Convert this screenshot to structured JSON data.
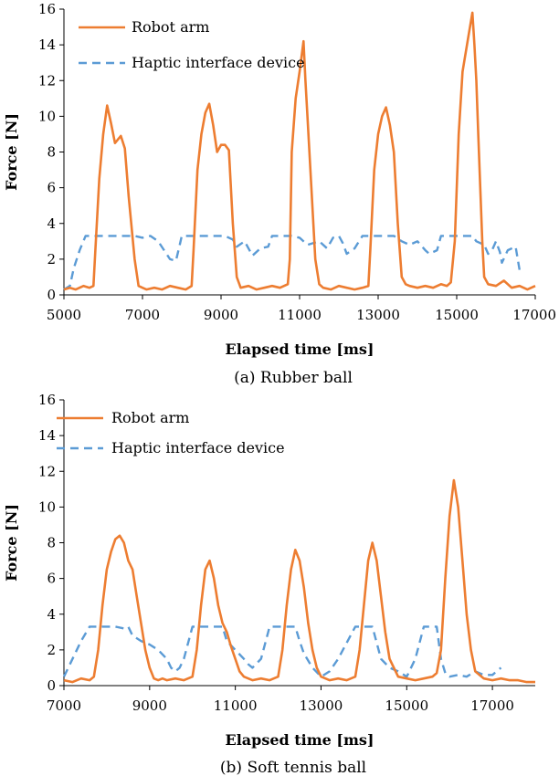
{
  "colors": {
    "robot": "#ED7D31",
    "haptic": "#5B9BD5"
  },
  "chart_data": [
    {
      "type": "line",
      "caption": "(a) Rubber ball",
      "xlabel": "Elapsed time [ms]",
      "ylabel": "Force [N]",
      "xlim": [
        5000,
        17000
      ],
      "ylim": [
        0,
        16
      ],
      "xticks": [
        5000,
        7000,
        9000,
        11000,
        13000,
        15000,
        17000
      ],
      "yticks": [
        0,
        2,
        4,
        6,
        8,
        10,
        12,
        14,
        16
      ],
      "grid": false,
      "legend_position": "top-left",
      "series": [
        {
          "name": "Robot arm",
          "style": "solid",
          "x": [
            5000,
            5150,
            5300,
            5500,
            5650,
            5750,
            5800,
            5900,
            6000,
            6100,
            6200,
            6300,
            6450,
            6550,
            6650,
            6800,
            6900,
            7000,
            7100,
            7300,
            7500,
            7700,
            7900,
            8100,
            8250,
            8300,
            8400,
            8500,
            8600,
            8700,
            8800,
            8900,
            9000,
            9100,
            9200,
            9300,
            9400,
            9500,
            9700,
            9900,
            10100,
            10300,
            10500,
            10700,
            10750,
            10800,
            10900,
            11000,
            11100,
            11150,
            11200,
            11300,
            11400,
            11500,
            11600,
            11800,
            12000,
            12200,
            12400,
            12600,
            12750,
            12800,
            12900,
            13000,
            13100,
            13200,
            13300,
            13400,
            13500,
            13600,
            13700,
            13800,
            14000,
            14200,
            14400,
            14600,
            14750,
            14850,
            14950,
            15050,
            15150,
            15300,
            15400,
            15450,
            15500,
            15550,
            15600,
            15650,
            15700,
            15800,
            16000,
            16200,
            16400,
            16600,
            16800,
            17000
          ],
          "y": [
            0.3,
            0.4,
            0.3,
            0.5,
            0.4,
            0.5,
            2.5,
            6.5,
            9.0,
            10.6,
            9.6,
            8.5,
            8.9,
            8.2,
            5.5,
            2.0,
            0.5,
            0.4,
            0.3,
            0.4,
            0.3,
            0.5,
            0.4,
            0.3,
            0.5,
            2.5,
            7.0,
            9.0,
            10.2,
            10.7,
            9.5,
            8.0,
            8.4,
            8.4,
            8.1,
            4.0,
            1.0,
            0.4,
            0.5,
            0.3,
            0.4,
            0.5,
            0.4,
            0.6,
            2.0,
            8.0,
            11.0,
            12.5,
            14.2,
            12.0,
            10.0,
            6.0,
            2.0,
            0.6,
            0.4,
            0.3,
            0.5,
            0.4,
            0.3,
            0.4,
            0.5,
            2.5,
            7.0,
            9.0,
            10.0,
            10.5,
            9.5,
            8.0,
            4.0,
            1.0,
            0.6,
            0.5,
            0.4,
            0.5,
            0.4,
            0.6,
            0.5,
            0.7,
            3.0,
            9.0,
            12.5,
            14.5,
            15.8,
            14.0,
            12.0,
            9.0,
            6.0,
            3.0,
            1.0,
            0.6,
            0.5,
            0.8,
            0.4,
            0.5,
            0.3,
            0.5
          ]
        },
        {
          "name": "Haptic interface device",
          "style": "dashed",
          "x": [
            5000,
            5150,
            5250,
            5400,
            5550,
            5800,
            6100,
            6400,
            6600,
            6800,
            7000,
            7200,
            7400,
            7700,
            7850,
            7950,
            8000,
            8400,
            8800,
            9100,
            9300,
            9400,
            9600,
            9800,
            10000,
            10200,
            10300,
            10400,
            10600,
            10800,
            11000,
            11200,
            11500,
            11700,
            11850,
            12000,
            12100,
            12200,
            12400,
            12600,
            13000,
            13400,
            13600,
            13800,
            14000,
            14200,
            14300,
            14500,
            14600,
            15000,
            15300,
            15400,
            15500,
            15700,
            15800,
            15900,
            16000,
            16100,
            16150,
            16300,
            16500,
            16600
          ],
          "y": [
            0.3,
            0.5,
            1.5,
            2.5,
            3.3,
            3.3,
            3.3,
            3.3,
            3.3,
            3.3,
            3.2,
            3.3,
            3.0,
            2.0,
            1.9,
            2.8,
            3.3,
            3.3,
            3.3,
            3.3,
            3.1,
            2.7,
            3.0,
            2.2,
            2.6,
            2.7,
            3.3,
            3.3,
            3.3,
            3.3,
            3.2,
            2.8,
            3.0,
            2.6,
            3.2,
            3.3,
            2.9,
            2.3,
            2.6,
            3.3,
            3.3,
            3.3,
            3.0,
            2.8,
            3.0,
            2.5,
            2.3,
            2.5,
            3.3,
            3.3,
            3.3,
            3.3,
            3.0,
            2.8,
            2.3,
            2.5,
            3.0,
            2.4,
            1.8,
            2.5,
            2.7,
            1.4
          ]
        }
      ]
    },
    {
      "type": "line",
      "caption": "(b) Soft tennis ball",
      "xlabel": "Elapsed time [ms]",
      "ylabel": "Force [N]",
      "xlim": [
        7000,
        18000
      ],
      "ylim": [
        0,
        16
      ],
      "xticks": [
        7000,
        9000,
        11000,
        13000,
        15000,
        17000
      ],
      "yticks": [
        0,
        2,
        4,
        6,
        8,
        10,
        12,
        14,
        16
      ],
      "grid": false,
      "legend_position": "top-left",
      "series": [
        {
          "name": "Robot arm",
          "style": "solid",
          "x": [
            7000,
            7200,
            7400,
            7600,
            7700,
            7800,
            7900,
            8000,
            8100,
            8200,
            8300,
            8400,
            8500,
            8600,
            8700,
            8800,
            8900,
            9000,
            9100,
            9200,
            9300,
            9400,
            9600,
            9800,
            10000,
            10100,
            10200,
            10300,
            10400,
            10500,
            10600,
            10700,
            10800,
            10900,
            11000,
            11100,
            11200,
            11400,
            11600,
            11800,
            12000,
            12100,
            12200,
            12300,
            12400,
            12500,
            12600,
            12700,
            12800,
            12900,
            13000,
            13200,
            13400,
            13600,
            13800,
            13900,
            14000,
            14100,
            14200,
            14300,
            14400,
            14500,
            14600,
            14800,
            15000,
            15200,
            15400,
            15600,
            15700,
            15800,
            15900,
            16000,
            16100,
            16200,
            16300,
            16400,
            16500,
            16600,
            16800,
            17000,
            17200,
            17400,
            17600,
            17800,
            18000
          ],
          "y": [
            0.3,
            0.2,
            0.4,
            0.3,
            0.5,
            2.0,
            4.5,
            6.5,
            7.5,
            8.2,
            8.4,
            8.0,
            7.0,
            6.5,
            5.0,
            3.5,
            2.0,
            1.0,
            0.4,
            0.3,
            0.4,
            0.3,
            0.4,
            0.3,
            0.5,
            2.0,
            4.5,
            6.5,
            7.0,
            6.0,
            4.5,
            3.5,
            3.0,
            2.2,
            1.5,
            0.8,
            0.5,
            0.3,
            0.4,
            0.3,
            0.5,
            2.0,
            4.5,
            6.5,
            7.6,
            7.0,
            5.5,
            3.5,
            2.0,
            1.0,
            0.5,
            0.3,
            0.4,
            0.3,
            0.5,
            2.0,
            4.5,
            7.0,
            8.0,
            7.0,
            5.0,
            3.0,
            1.5,
            0.5,
            0.4,
            0.3,
            0.4,
            0.5,
            0.7,
            2.0,
            6.0,
            9.5,
            11.5,
            10.0,
            7.0,
            4.0,
            2.0,
            0.8,
            0.4,
            0.3,
            0.4,
            0.3,
            0.3,
            0.2,
            0.2
          ]
        },
        {
          "name": "Haptic interface device",
          "style": "dashed",
          "x": [
            7000,
            7200,
            7400,
            7600,
            7800,
            8000,
            8200,
            8400,
            8500,
            8600,
            8800,
            9000,
            9200,
            9400,
            9500,
            9600,
            9700,
            9800,
            10000,
            10200,
            10400,
            10700,
            10800,
            11000,
            11200,
            11300,
            11400,
            11600,
            11800,
            12200,
            12400,
            12500,
            12600,
            12800,
            13000,
            13200,
            13400,
            13800,
            14000,
            14200,
            14400,
            14600,
            14800,
            15000,
            15200,
            15400,
            15700,
            15800,
            15900,
            16000,
            16200,
            16400,
            16600,
            16800,
            17000,
            17200
          ],
          "y": [
            0.5,
            1.5,
            2.5,
            3.3,
            3.3,
            3.3,
            3.3,
            3.2,
            3.3,
            2.8,
            2.5,
            2.3,
            2.0,
            1.5,
            1.0,
            0.8,
            1.0,
            1.5,
            3.3,
            3.3,
            3.3,
            3.3,
            2.5,
            2.0,
            1.5,
            1.2,
            1.0,
            1.5,
            3.3,
            3.3,
            3.3,
            2.5,
            1.8,
            1.0,
            0.5,
            0.8,
            1.5,
            3.3,
            3.3,
            3.3,
            1.5,
            1.0,
            0.8,
            0.5,
            1.5,
            3.3,
            3.3,
            1.5,
            0.7,
            0.5,
            0.6,
            0.5,
            0.8,
            0.6,
            0.6,
            1.0
          ]
        }
      ]
    }
  ]
}
